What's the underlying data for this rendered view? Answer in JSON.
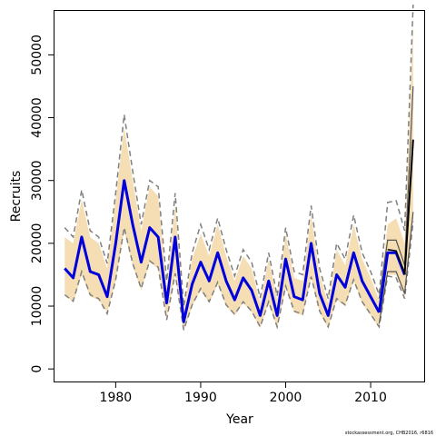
{
  "chart_data": {
    "type": "line",
    "xlabel": "Year",
    "ylabel": "Recruits",
    "xlim": [
      1972.8,
      2016.3
    ],
    "ylim": [
      -2000,
      57000
    ],
    "xticks": [
      1980,
      1990,
      2000,
      2010
    ],
    "xtick_labels": [
      "1980",
      "1990",
      "2000",
      "2010"
    ],
    "yticks": [
      0,
      10000,
      20000,
      30000,
      40000,
      50000
    ],
    "ytick_labels": [
      "0",
      "10000",
      "20000",
      "30000",
      "40000",
      "50000"
    ],
    "grid": false,
    "legend": "none",
    "colors": {
      "band": "#f5deb3",
      "main": "#0000dd",
      "ci": "#808080",
      "retro": "#555555",
      "projection": "#000000"
    },
    "x": [
      1974,
      1975,
      1976,
      1977,
      1978,
      1979,
      1980,
      1981,
      1982,
      1983,
      1984,
      1985,
      1986,
      1987,
      1988,
      1989,
      1990,
      1991,
      1992,
      1993,
      1994,
      1995,
      1996,
      1997,
      1998,
      1999,
      2000,
      2001,
      2002,
      2003,
      2004,
      2005,
      2006,
      2007,
      2008,
      2009,
      2010,
      2011
    ],
    "series": [
      {
        "role": "estimate",
        "values": [
          16000,
          14500,
          21000,
          15500,
          15000,
          11500,
          20000,
          30000,
          23000,
          17000,
          22500,
          21000,
          10500,
          21000,
          7500,
          13500,
          17000,
          14000,
          18500,
          14000,
          11000,
          14500,
          12500,
          8500,
          14000,
          8500,
          17500,
          11500,
          11000,
          20000,
          12000,
          8500,
          15000,
          13000,
          18500,
          14000,
          11500,
          9000
        ]
      },
      {
        "role": "band-lower",
        "values": [
          12000,
          10500,
          15000,
          11500,
          11000,
          9000,
          14000,
          22000,
          16500,
          12500,
          17000,
          16000,
          8000,
          15000,
          6000,
          10000,
          12500,
          10500,
          13500,
          10000,
          8500,
          10500,
          9000,
          6500,
          10500,
          6500,
          13000,
          9000,
          8500,
          14500,
          9000,
          6500,
          11000,
          10000,
          14000,
          10500,
          8500,
          6500
        ]
      },
      {
        "role": "band-upper",
        "values": [
          21000,
          20000,
          27000,
          21000,
          20000,
          16000,
          27000,
          38500,
          30000,
          22000,
          29000,
          27500,
          13000,
          26000,
          9500,
          17500,
          21500,
          18000,
          23000,
          18000,
          14000,
          18000,
          16000,
          10500,
          17500,
          11000,
          21500,
          14500,
          14000,
          24500,
          15000,
          10500,
          19000,
          16500,
          23000,
          17500,
          14500,
          11000
        ]
      },
      {
        "role": "ci-lower",
        "values": [
          11800,
          10800,
          15500,
          11800,
          11200,
          8800,
          14200,
          22500,
          16800,
          12800,
          17200,
          16200,
          7800,
          15200,
          6200,
          10200,
          12800,
          10700,
          13800,
          10200,
          8700,
          10700,
          9200,
          6700,
          10700,
          6700,
          13200,
          9200,
          8700,
          14700,
          9200,
          6700,
          11200,
          10200,
          14200,
          10700,
          8700,
          6700
        ]
      },
      {
        "role": "ci-upper",
        "values": [
          22500,
          21000,
          28500,
          22000,
          21000,
          16800,
          28000,
          40500,
          31500,
          23000,
          30000,
          29000,
          14000,
          28000,
          10000,
          18500,
          23000,
          19000,
          24000,
          19000,
          14800,
          19000,
          17000,
          11300,
          18500,
          11600,
          22500,
          15500,
          15000,
          26000,
          16000,
          11200,
          20000,
          17500,
          24500,
          18500,
          15500,
          11800
        ]
      }
    ],
    "projection": {
      "x": [
        2011,
        2012,
        2013,
        2014,
        2015
      ],
      "estimate": [
        9000,
        18500,
        18500,
        15000,
        36500
      ],
      "retro_estimate": [
        9000,
        19000,
        18800,
        15200,
        36500
      ],
      "band_lower": [
        7000,
        15000,
        15000,
        11500,
        24000
      ],
      "band_upper": [
        11000,
        23000,
        24000,
        20000,
        55000
      ],
      "ci_lower": [
        6800,
        14800,
        14500,
        11200,
        23500
      ],
      "ci_upper": [
        11800,
        26500,
        26800,
        22000,
        58000
      ],
      "retro_lower": [
        7200,
        15500,
        15500,
        12000,
        25000
      ],
      "retro_upper": [
        11200,
        20500,
        20500,
        16500,
        45000
      ]
    },
    "annotation": "stockassessment.org, CHB2016, r6816"
  }
}
